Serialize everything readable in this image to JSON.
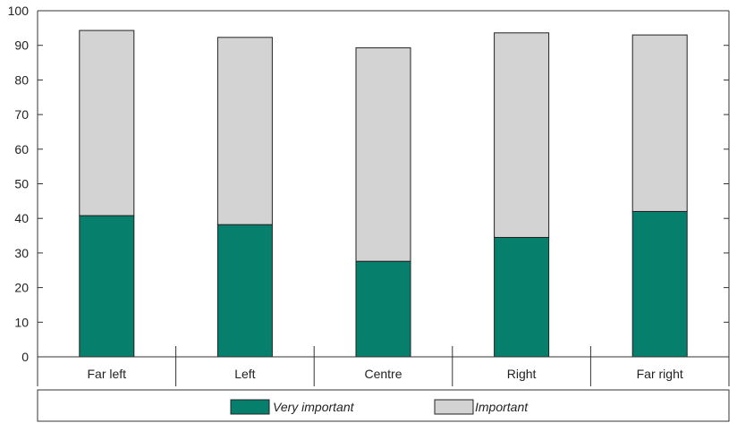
{
  "chart_data": {
    "type": "bar",
    "stacked": true,
    "categories": [
      "Far left",
      "Left",
      "Centre",
      "Right",
      "Far right"
    ],
    "series": [
      {
        "name": "Very important",
        "values": [
          40.8,
          38.2,
          27.6,
          34.5,
          42.0
        ]
      },
      {
        "name": "Important",
        "values": [
          53.5,
          54.1,
          61.7,
          59.1,
          51.0
        ]
      }
    ],
    "ylim": [
      0,
      100
    ],
    "yticks": [
      "0",
      "10",
      "20",
      "30",
      "40",
      "50",
      "60",
      "70",
      "80",
      "90",
      "100"
    ],
    "grid": false,
    "legend_placement": "bottom",
    "colors": {
      "Very important": "#06806c",
      "Important": "#d3d3d3"
    }
  }
}
